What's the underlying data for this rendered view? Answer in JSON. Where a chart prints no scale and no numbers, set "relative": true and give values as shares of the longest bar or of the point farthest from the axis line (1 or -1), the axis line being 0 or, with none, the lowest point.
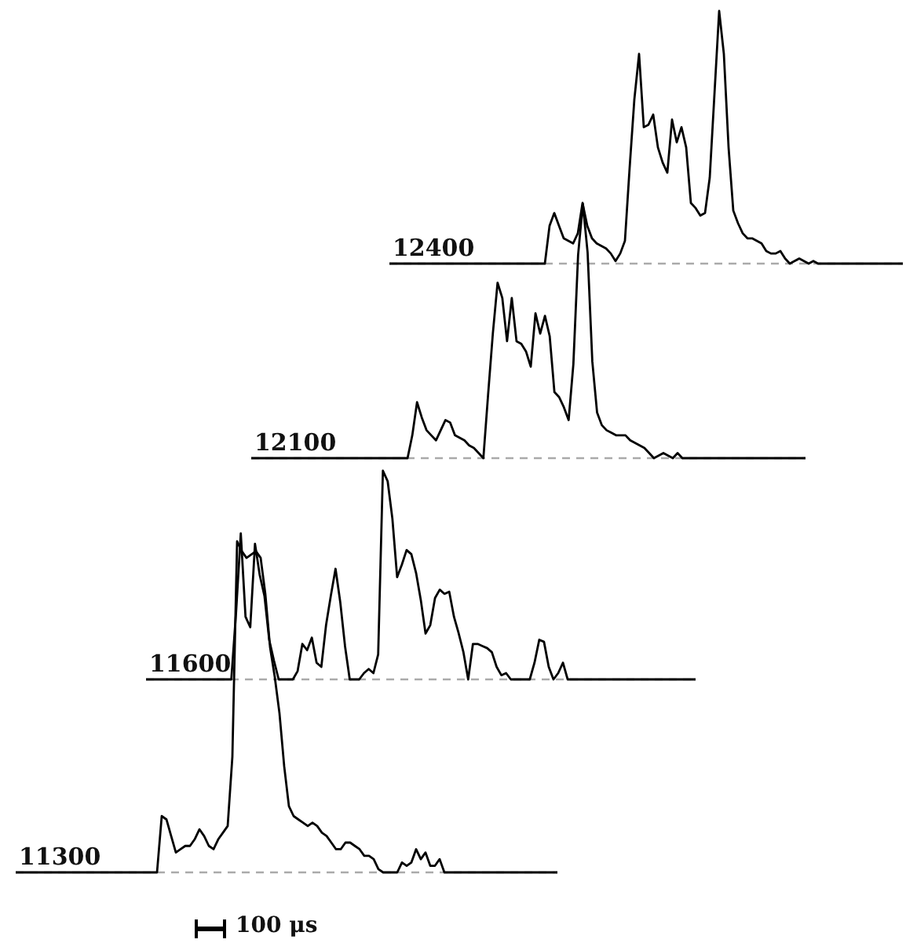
{
  "chart_data": [
    {
      "type": "line",
      "relative": true,
      "categories": [
        null,
        null,
        null,
        null,
        null,
        null,
        null,
        null,
        null,
        null,
        null,
        null,
        null,
        null,
        null,
        null,
        null,
        null,
        null,
        null,
        null,
        null,
        null,
        null,
        null,
        null,
        null,
        null,
        null,
        null,
        null,
        null,
        null,
        null,
        null,
        null,
        null,
        null,
        null,
        null,
        null,
        null,
        null,
        null,
        null,
        null,
        null,
        null,
        null,
        null,
        null,
        null,
        null,
        null,
        null,
        null,
        null,
        null,
        null,
        null,
        null,
        null,
        null,
        null,
        null,
        null,
        null,
        null,
        null,
        null,
        null,
        null,
        null,
        null,
        null,
        null,
        null,
        null,
        null,
        null,
        null,
        null,
        null,
        null,
        null,
        null,
        null,
        null,
        null,
        null,
        null,
        null,
        null,
        null,
        null,
        null,
        null,
        null,
        null,
        null,
        null,
        null,
        null,
        null,
        null,
        null,
        null,
        null,
        null,
        null
      ],
      "series": [
        {
          "name": "12400",
          "color": "#000000",
          "values": [
            0,
            0,
            0,
            0,
            0,
            0,
            0,
            0,
            0,
            0,
            0,
            0,
            0,
            0,
            0,
            0,
            0,
            0,
            0,
            0,
            0,
            0,
            0,
            0,
            0,
            0,
            0,
            0,
            0,
            0,
            0,
            0,
            0,
            0,
            0.15,
            0.2,
            0.15,
            0.1,
            0.09,
            0.08,
            0.12,
            0.24,
            0.15,
            0.1,
            0.08,
            0.07,
            0.06,
            0.04,
            0.01,
            0.04,
            0.09,
            0.38,
            0.65,
            0.83,
            0.54,
            0.55,
            0.59,
            0.46,
            0.4,
            0.36,
            0.57,
            0.48,
            0.54,
            0.46,
            0.24,
            0.22,
            0.19,
            0.2,
            0.34,
            0.67,
            1,
            0.83,
            0.46,
            0.21,
            0.16,
            0.12,
            0.1,
            0.1,
            0.09,
            0.08,
            0.05,
            0.04,
            0.04,
            0.05,
            0.02,
            0,
            0.01,
            0.02,
            0.01,
            0,
            0.01,
            0,
            0,
            0,
            0,
            0,
            0,
            0,
            0,
            0,
            0,
            0,
            0,
            0,
            0,
            0,
            0,
            0,
            0,
            0
          ]
        }
      ]
    },
    {
      "type": "line",
      "relative": true,
      "categories": [
        null,
        null,
        null,
        null,
        null,
        null,
        null,
        null,
        null,
        null,
        null,
        null,
        null,
        null,
        null,
        null,
        null,
        null,
        null,
        null,
        null,
        null,
        null,
        null,
        null,
        null,
        null,
        null,
        null,
        null,
        null,
        null,
        null,
        null,
        null,
        null,
        null,
        null,
        null,
        null,
        null,
        null,
        null,
        null,
        null,
        null,
        null,
        null,
        null,
        null,
        null,
        null,
        null,
        null,
        null,
        null,
        null,
        null,
        null,
        null,
        null,
        null,
        null,
        null,
        null,
        null,
        null,
        null,
        null,
        null,
        null,
        null,
        null,
        null,
        null,
        null,
        null,
        null,
        null,
        null,
        null,
        null,
        null,
        null,
        null,
        null,
        null,
        null,
        null,
        null,
        null,
        null,
        null,
        null,
        null,
        null,
        null,
        null,
        null,
        null,
        null,
        null,
        null,
        null,
        null,
        null,
        null,
        null,
        null,
        null,
        null,
        null,
        null,
        null,
        null,
        null,
        null,
        null
      ],
      "series": [
        {
          "name": "12100",
          "color": "#000000",
          "values": [
            0,
            0,
            0,
            0,
            0,
            0,
            0,
            0,
            0,
            0,
            0,
            0,
            0,
            0,
            0,
            0,
            0,
            0,
            0,
            0,
            0,
            0,
            0,
            0,
            0,
            0,
            0,
            0,
            0,
            0,
            0,
            0,
            0,
            0,
            0.09,
            0.22,
            0.16,
            0.11,
            0.09,
            0.07,
            0.11,
            0.15,
            0.14,
            0.09,
            0.08,
            0.07,
            0.05,
            0.04,
            0.02,
            0,
            0.25,
            0.49,
            0.69,
            0.63,
            0.46,
            0.63,
            0.46,
            0.45,
            0.42,
            0.36,
            0.57,
            0.49,
            0.56,
            0.48,
            0.26,
            0.24,
            0.2,
            0.15,
            0.37,
            0.8,
            1,
            0.81,
            0.38,
            0.18,
            0.13,
            0.11,
            0.1,
            0.09,
            0.09,
            0.09,
            0.07,
            0.06,
            0.05,
            0.04,
            0.02,
            0,
            0.01,
            0.02,
            0.01,
            0,
            0.02,
            0,
            0,
            0,
            0,
            0,
            0,
            0,
            0,
            0,
            0,
            0,
            0,
            0,
            0,
            0,
            0,
            0,
            0,
            0,
            0,
            0,
            0,
            0,
            0,
            0,
            0,
            0
          ]
        }
      ]
    },
    {
      "type": "line",
      "relative": true,
      "categories": [
        null,
        null,
        null,
        null,
        null,
        null,
        null,
        null,
        null,
        null,
        null,
        null,
        null,
        null,
        null,
        null,
        null,
        null,
        null,
        null,
        null,
        null,
        null,
        null,
        null,
        null,
        null,
        null,
        null,
        null,
        null,
        null,
        null,
        null,
        null,
        null,
        null,
        null,
        null,
        null,
        null,
        null,
        null,
        null,
        null,
        null,
        null,
        null,
        null,
        null,
        null,
        null,
        null,
        null,
        null,
        null,
        null,
        null,
        null,
        null,
        null,
        null,
        null,
        null,
        null,
        null,
        null,
        null,
        null,
        null,
        null,
        null,
        null,
        null,
        null,
        null,
        null,
        null,
        null,
        null,
        null,
        null,
        null,
        null,
        null,
        null,
        null,
        null,
        null,
        null,
        null,
        null,
        null,
        null,
        null,
        null,
        null,
        null,
        null,
        null,
        null,
        null,
        null,
        null,
        null,
        null,
        null,
        null,
        null,
        null,
        null,
        null,
        null,
        null,
        null,
        null,
        null
      ],
      "series": [
        {
          "name": "11600",
          "color": "#000000",
          "values": [
            0,
            0,
            0,
            0,
            0,
            0,
            0,
            0,
            0,
            0,
            0,
            0,
            0,
            0,
            0,
            0,
            0,
            0,
            0,
            0.32,
            0.7,
            0.3,
            0.25,
            0.65,
            0.5,
            0.4,
            0.19,
            0.09,
            0,
            0,
            0,
            0,
            0.04,
            0.17,
            0.14,
            0.2,
            0.08,
            0.06,
            0.26,
            0.4,
            0.53,
            0.37,
            0.16,
            0,
            0,
            0,
            0.03,
            0.05,
            0.03,
            0.12,
            1,
            0.95,
            0.77,
            0.49,
            0.55,
            0.62,
            0.6,
            0.51,
            0.38,
            0.22,
            0.26,
            0.39,
            0.43,
            0.41,
            0.42,
            0.3,
            0.22,
            0.13,
            0,
            0.17,
            0.17,
            0.16,
            0.15,
            0.13,
            0.06,
            0.02,
            0.03,
            0,
            0,
            0,
            0,
            0,
            0.08,
            0.19,
            0.18,
            0.06,
            0,
            0.03,
            0.08,
            0,
            0,
            0,
            0,
            0,
            0,
            0,
            0,
            0,
            0,
            0,
            0,
            0,
            0,
            0,
            0,
            0,
            0,
            0,
            0,
            0,
            0,
            0,
            0,
            0,
            0,
            0,
            0
          ]
        }
      ]
    },
    {
      "type": "line",
      "relative": true,
      "annotations": [
        "100 μs"
      ],
      "categories": [
        null,
        null,
        null,
        null,
        null,
        null,
        null,
        null,
        null,
        null,
        null,
        null,
        null,
        null,
        null,
        null,
        null,
        null,
        null,
        null,
        null,
        null,
        null,
        null,
        null,
        null,
        null,
        null,
        null,
        null,
        null,
        null,
        null,
        null,
        null,
        null,
        null,
        null,
        null,
        null,
        null,
        null,
        null,
        null,
        null,
        null,
        null,
        null,
        null,
        null,
        null,
        null,
        null,
        null,
        null,
        null,
        null,
        null,
        null,
        null,
        null,
        null,
        null,
        null,
        null,
        null,
        null,
        null,
        null,
        null,
        null,
        null,
        null,
        null,
        null,
        null,
        null,
        null,
        null,
        null,
        null,
        null,
        null,
        null,
        null,
        null,
        null,
        null,
        null,
        null,
        null,
        null,
        null,
        null,
        null,
        null,
        null,
        null,
        null,
        null,
        null,
        null,
        null,
        null,
        null,
        null,
        null,
        null,
        null,
        null,
        null,
        null,
        null,
        null,
        null,
        null
      ],
      "series": [
        {
          "name": "11300",
          "color": "#000000",
          "values": [
            0,
            0,
            0,
            0,
            0,
            0,
            0,
            0,
            0,
            0,
            0,
            0,
            0,
            0,
            0,
            0,
            0,
            0,
            0,
            0,
            0,
            0,
            0,
            0,
            0,
            0,
            0,
            0,
            0,
            0,
            0,
            0.17,
            0.16,
            0.11,
            0.06,
            0.07,
            0.08,
            0.08,
            0.1,
            0.13,
            0.11,
            0.08,
            0.07,
            0.1,
            0.12,
            0.14,
            0.35,
            1,
            0.97,
            0.95,
            0.96,
            0.97,
            0.95,
            0.84,
            0.68,
            0.59,
            0.48,
            0.32,
            0.2,
            0.17,
            0.16,
            0.15,
            0.14,
            0.15,
            0.14,
            0.12,
            0.11,
            0.09,
            0.07,
            0.07,
            0.09,
            0.09,
            0.08,
            0.07,
            0.05,
            0.05,
            0.04,
            0.01,
            0,
            0,
            0,
            0,
            0.03,
            0.02,
            0.03,
            0.07,
            0.04,
            0.06,
            0.02,
            0.02,
            0.04,
            0,
            0,
            0,
            0,
            0,
            0,
            0,
            0,
            0,
            0,
            0,
            0,
            0,
            0,
            0,
            0,
            0,
            0,
            0,
            0,
            0,
            0,
            0,
            0,
            0
          ]
        }
      ]
    }
  ]
}
